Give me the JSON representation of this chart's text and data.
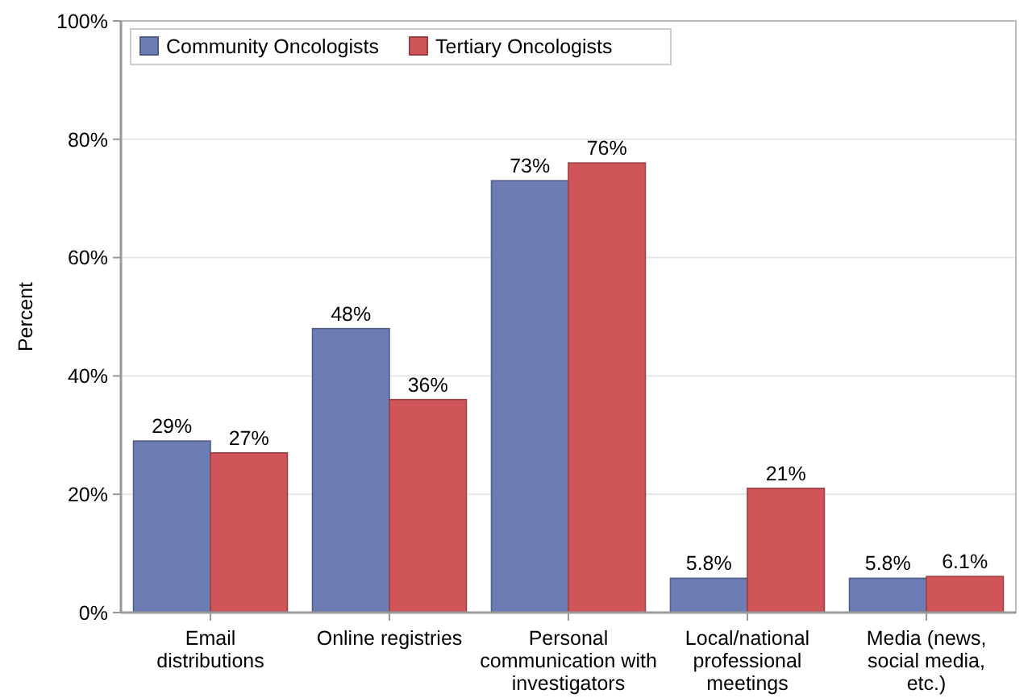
{
  "chart_data": {
    "type": "bar",
    "ylabel": "Percent",
    "categories": [
      "Email distributions",
      "Online registries",
      "Personal communication with investigators",
      "Local/national professional meetings",
      "Media (news, social media, etc.)"
    ],
    "series": [
      {
        "name": "Community Oncologists",
        "color": "#6d7db4",
        "values": [
          29,
          48,
          73,
          5.8,
          5.8
        ],
        "value_labels": [
          "29%",
          "48%",
          "73%",
          "5.8%",
          "5.8%"
        ]
      },
      {
        "name": "Tertiary Oncologists",
        "color": "#d05559",
        "values": [
          27,
          36,
          76,
          21,
          6.1
        ],
        "value_labels": [
          "27%",
          "36%",
          "76%",
          "21%",
          "6.1%"
        ]
      }
    ],
    "ylim": [
      0,
      100
    ],
    "yticks": [
      {
        "value": 0,
        "label": "0%"
      },
      {
        "value": 20,
        "label": "20%"
      },
      {
        "value": 40,
        "label": "40%"
      },
      {
        "value": 60,
        "label": "60%"
      },
      {
        "value": 80,
        "label": "80%"
      },
      {
        "value": 100,
        "label": "100%"
      }
    ],
    "grid": "y",
    "legend": "top left"
  }
}
